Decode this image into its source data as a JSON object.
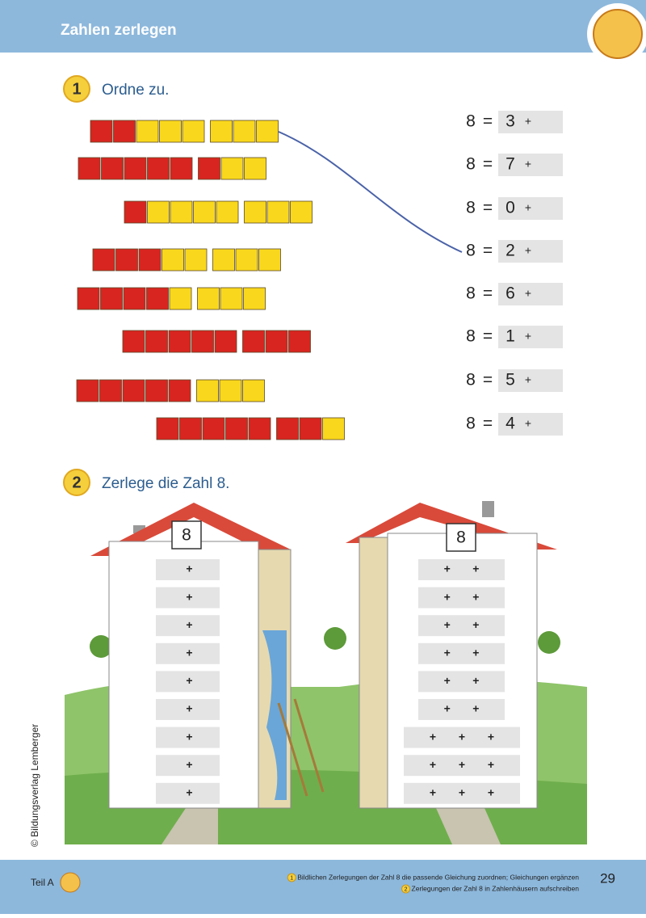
{
  "header": {
    "title": "Zahlen zerlegen"
  },
  "exercise1": {
    "number": "1",
    "instruction": "Ordne zu.",
    "rods": [
      {
        "red": 2,
        "yellow": 6
      },
      {
        "red": 6,
        "yellow": 2
      },
      {
        "red": 1,
        "yellow": 7
      },
      {
        "red": 3,
        "yellow": 5
      },
      {
        "red": 4,
        "yellow": 4
      },
      {
        "red": 8,
        "yellow": 0
      },
      {
        "red": 5,
        "yellow": 3
      },
      {
        "red": 7,
        "yellow": 1
      }
    ],
    "equations": [
      [
        "8",
        "=",
        "3",
        "+"
      ],
      [
        "8",
        "=",
        "7",
        "+"
      ],
      [
        "8",
        "=",
        "0",
        "+"
      ],
      [
        "8",
        "=",
        "2",
        "+"
      ],
      [
        "8",
        "=",
        "6",
        "+"
      ],
      [
        "8",
        "=",
        "1",
        "+"
      ],
      [
        "8",
        "=",
        "5",
        "+"
      ],
      [
        "8",
        "=",
        "4",
        "+"
      ]
    ]
  },
  "exercise2": {
    "number": "2",
    "instruction": "Zerlege die Zahl 8.",
    "houses": [
      {
        "number": "8",
        "rows": [
          [
            "+"
          ],
          [
            "+"
          ],
          [
            "+"
          ],
          [
            "+"
          ],
          [
            "+"
          ],
          [
            "+"
          ],
          [
            "+"
          ],
          [
            "+"
          ],
          [
            "+"
          ]
        ]
      },
      {
        "number": "8",
        "rows": [
          [
            "+",
            "+"
          ],
          [
            "+",
            "+"
          ],
          [
            "+",
            "+"
          ],
          [
            "+",
            "+"
          ],
          [
            "+",
            "+"
          ],
          [
            "+",
            "+"
          ],
          [
            "+",
            "+",
            "+"
          ],
          [
            "+",
            "+",
            "+"
          ],
          [
            "+",
            "+",
            "+"
          ]
        ]
      }
    ]
  },
  "copyright": "© Bildungsverlag Lemberger",
  "footer": {
    "part": "Teil A",
    "page": "29",
    "notes": [
      {
        "number": "1",
        "text": "Bildlichen Zerlegungen der Zahl 8 die passende Gleichung zuordnen; Gleichungen ergänzen"
      },
      {
        "number": "2",
        "text": "Zerlegungen der Zahl 8 in Zahlenhäusern aufschreiben"
      }
    ]
  }
}
